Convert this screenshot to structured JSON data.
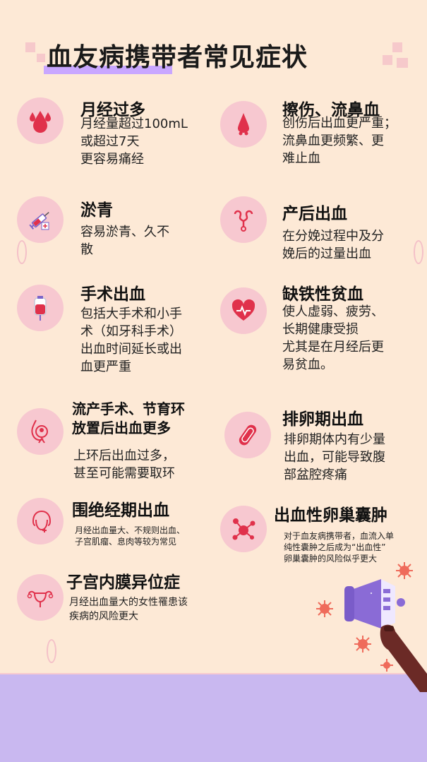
{
  "title": "血友病携带者常见症状",
  "colors": {
    "background": "#fde9d6",
    "icon_circle": "#f7c8d0",
    "accent_purple": "#c9a7ff",
    "floor": "#c9b8f0",
    "icon_red": "#e0314b"
  },
  "items": [
    {
      "heading": "月经过多",
      "text": "月经量超过100mL\n或超过7天\n更容易痛经",
      "icon": "blood-drops-icon"
    },
    {
      "heading": "擦伤、流鼻血",
      "text": "创伤后出血更严重；\n流鼻血更频繁、更\n难止血",
      "icon": "nose-bleed-icon"
    },
    {
      "heading": "淤青",
      "text": "容易淤青、久不\n散",
      "icon": "syringe-icon"
    },
    {
      "heading": "产后出血",
      "text": "在分娩过程中及分\n娩后的过量出血",
      "icon": "uterus-tube-icon"
    },
    {
      "heading": "手术出血",
      "text": "包括大手术和小手\n术（如牙科手术）\n出血时间延长或出\n血更严重",
      "icon": "blood-bag-icon"
    },
    {
      "heading": "缺铁性贫血",
      "text": "使人虚弱、疲劳、\n长期健康受损\n尤其是在月经后更\n易贫血。",
      "icon": "heartbeat-icon"
    },
    {
      "heading": "流产手术、节育环\n放置后出血更多",
      "text": "上环后出血过多，\n甚至可能需要取环",
      "icon": "pregnancy-icon"
    },
    {
      "heading": "排卵期出血",
      "text": "排卵期体内有少量\n出血，可能导致腹\n部盆腔疼痛",
      "icon": "pad-icon"
    },
    {
      "heading": "围绝经期出血",
      "text": "月经出血量大、不规则出血、\n子宫肌瘤、息肉等较为常见",
      "icon": "woman-head-icon"
    },
    {
      "heading": "出血性卵巢囊肿",
      "text": "对于血友病携带者，血流入单\n纯性囊肿之后成为“出血性”\n卵巢囊肿的风险似乎更大",
      "icon": "ovary-molecule-icon"
    },
    {
      "heading": "子宫内膜异位症",
      "text": "月经出血量大的女性罹患该\n疾病的风险更大",
      "icon": "uterus-icon"
    }
  ]
}
